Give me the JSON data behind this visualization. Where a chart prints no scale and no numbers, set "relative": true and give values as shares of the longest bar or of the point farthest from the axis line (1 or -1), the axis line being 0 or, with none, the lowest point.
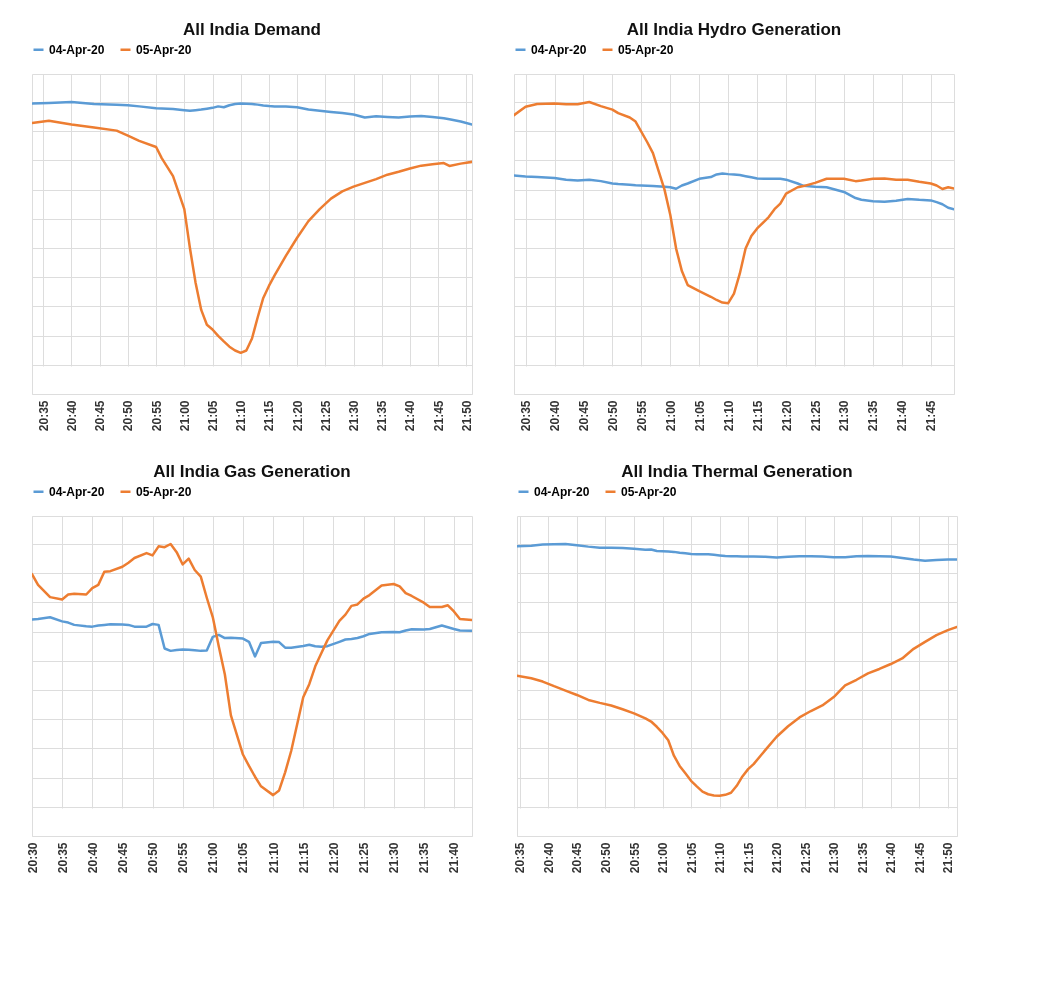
{
  "chart_data": [
    {
      "type": "line",
      "title": "All India Demand",
      "relative": true,
      "grid": true,
      "legend": "top",
      "tick_labels": "x",
      "xlim": [
        20.55,
        21.85
      ],
      "xticks": [
        {
          "value": 20.5833,
          "label": "20:35"
        },
        {
          "value": 20.6667,
          "label": "20:40"
        },
        {
          "value": 20.75,
          "label": "20:45"
        },
        {
          "value": 20.8333,
          "label": "20:50"
        },
        {
          "value": 20.9167,
          "label": "20:55"
        },
        {
          "value": 21.0,
          "label": "21:00"
        },
        {
          "value": 21.0833,
          "label": "21:05"
        },
        {
          "value": 21.1667,
          "label": "21:10"
        },
        {
          "value": 21.25,
          "label": "21:15"
        },
        {
          "value": 21.3333,
          "label": "21:20"
        },
        {
          "value": 21.4167,
          "label": "21:25"
        },
        {
          "value": 21.5,
          "label": "21:30"
        },
        {
          "value": 21.5833,
          "label": "21:35"
        },
        {
          "value": 21.6667,
          "label": "21:40"
        },
        {
          "value": 21.75,
          "label": "21:45"
        },
        {
          "value": 21.8333,
          "label": "21:50"
        }
      ],
      "x": [
        20.55,
        20.6,
        20.6667,
        20.7333,
        20.8,
        20.8333,
        20.8667,
        20.9167,
        20.9333,
        20.9667,
        21.0,
        21.0167,
        21.0333,
        21.05,
        21.0667,
        21.0833,
        21.1,
        21.1167,
        21.1333,
        21.15,
        21.1667,
        21.1833,
        21.2,
        21.2167,
        21.2333,
        21.25,
        21.2667,
        21.3,
        21.3333,
        21.3667,
        21.4,
        21.4333,
        21.4667,
        21.5,
        21.5333,
        21.5667,
        21.6,
        21.6333,
        21.6667,
        21.7,
        21.7333,
        21.7667,
        21.7833,
        21.8167,
        21.85
      ],
      "series": [
        {
          "name": "04-Apr-20",
          "color": "#5b9bd5",
          "values": [
            0.995,
            0.997,
            1.0,
            0.993,
            0.991,
            0.989,
            0.985,
            0.979,
            0.978,
            0.976,
            0.972,
            0.97,
            0.972,
            0.974,
            0.977,
            0.98,
            0.985,
            0.982,
            0.989,
            0.993,
            0.995,
            0.994,
            0.993,
            0.991,
            0.988,
            0.986,
            0.985,
            0.985,
            0.982,
            0.974,
            0.97,
            0.966,
            0.962,
            0.957,
            0.947,
            0.951,
            0.949,
            0.947,
            0.95,
            0.952,
            0.949,
            0.944,
            0.941,
            0.933,
            0.923
          ]
        },
        {
          "name": "05-Apr-20",
          "color": "#ed7d31",
          "values": [
            0.928,
            0.936,
            0.923,
            0.913,
            0.902,
            0.885,
            0.867,
            0.846,
            0.808,
            0.746,
            0.633,
            0.499,
            0.381,
            0.288,
            0.237,
            0.221,
            0.199,
            0.18,
            0.162,
            0.149,
            0.141,
            0.149,
            0.19,
            0.262,
            0.329,
            0.37,
            0.406,
            0.473,
            0.535,
            0.592,
            0.633,
            0.669,
            0.694,
            0.71,
            0.723,
            0.736,
            0.751,
            0.761,
            0.772,
            0.782,
            0.787,
            0.791,
            0.781,
            0.789,
            0.795
          ]
        }
      ]
    },
    {
      "type": "line",
      "title": "All India Hydro Generation",
      "relative": true,
      "grid": true,
      "legend": "top",
      "tick_labels": "x",
      "xlim": [
        20.55,
        21.8167
      ],
      "xticks": [
        {
          "value": 20.5833,
          "label": "20:35"
        },
        {
          "value": 20.6667,
          "label": "20:40"
        },
        {
          "value": 20.75,
          "label": "20:45"
        },
        {
          "value": 20.8333,
          "label": "20:50"
        },
        {
          "value": 20.9167,
          "label": "20:55"
        },
        {
          "value": 21.0,
          "label": "21:00"
        },
        {
          "value": 21.0833,
          "label": "21:05"
        },
        {
          "value": 21.1667,
          "label": "21:10"
        },
        {
          "value": 21.25,
          "label": "21:15"
        },
        {
          "value": 21.3333,
          "label": "21:20"
        },
        {
          "value": 21.4167,
          "label": "21:25"
        },
        {
          "value": 21.5,
          "label": "21:30"
        },
        {
          "value": 21.5833,
          "label": "21:35"
        },
        {
          "value": 21.6667,
          "label": "21:40"
        },
        {
          "value": 21.75,
          "label": "21:45"
        }
      ],
      "x": [
        20.55,
        20.5833,
        20.6167,
        20.6667,
        20.7,
        20.7333,
        20.7667,
        20.8,
        20.8333,
        20.85,
        20.8833,
        20.9,
        20.9333,
        20.95,
        20.9833,
        21.0,
        21.0167,
        21.0333,
        21.05,
        21.0833,
        21.1167,
        21.1333,
        21.15,
        21.1667,
        21.1833,
        21.2,
        21.2167,
        21.2333,
        21.25,
        21.2833,
        21.3,
        21.3167,
        21.3333,
        21.3667,
        21.3833,
        21.4167,
        21.45,
        21.5,
        21.5333,
        21.55,
        21.5833,
        21.6167,
        21.65,
        21.6833,
        21.7167,
        21.75,
        21.7667,
        21.7833,
        21.8,
        21.8167
      ],
      "series": [
        {
          "name": "04-Apr-20",
          "color": "#5b9bd5",
          "values": [
            0.748,
            0.745,
            0.743,
            0.74,
            0.734,
            0.731,
            0.734,
            0.729,
            0.721,
            0.719,
            0.717,
            0.715,
            0.713,
            0.712,
            0.71,
            0.708,
            0.703,
            0.714,
            0.721,
            0.737,
            0.743,
            0.752,
            0.755,
            0.753,
            0.752,
            0.75,
            0.746,
            0.742,
            0.738,
            0.737,
            0.737,
            0.737,
            0.734,
            0.721,
            0.713,
            0.71,
            0.708,
            0.692,
            0.671,
            0.665,
            0.66,
            0.658,
            0.662,
            0.668,
            0.665,
            0.663,
            0.657,
            0.65,
            0.638,
            0.633
          ]
        },
        {
          "name": "05-Apr-20",
          "color": "#ed7d31",
          "values": [
            0.955,
            0.984,
            0.993,
            0.995,
            0.992,
            0.992,
            1.0,
            0.986,
            0.974,
            0.962,
            0.947,
            0.933,
            0.863,
            0.825,
            0.7,
            0.613,
            0.498,
            0.421,
            0.373,
            0.352,
            0.333,
            0.322,
            0.313,
            0.311,
            0.344,
            0.412,
            0.498,
            0.541,
            0.567,
            0.606,
            0.633,
            0.652,
            0.686,
            0.708,
            0.712,
            0.723,
            0.737,
            0.737,
            0.729,
            0.731,
            0.737,
            0.738,
            0.734,
            0.734,
            0.727,
            0.721,
            0.714,
            0.702,
            0.708,
            0.704
          ]
        }
      ]
    },
    {
      "type": "line",
      "title": "All India Gas Generation",
      "relative": true,
      "grid": true,
      "legend": "top",
      "tick_labels": "x",
      "xlim": [
        20.5,
        21.7167
      ],
      "xticks": [
        {
          "value": 20.5,
          "label": "20:30"
        },
        {
          "value": 20.5833,
          "label": "20:35"
        },
        {
          "value": 20.6667,
          "label": "20:40"
        },
        {
          "value": 20.75,
          "label": "20:45"
        },
        {
          "value": 20.8333,
          "label": "20:50"
        },
        {
          "value": 20.9167,
          "label": "20:55"
        },
        {
          "value": 21.0,
          "label": "21:00"
        },
        {
          "value": 21.0833,
          "label": "21:05"
        },
        {
          "value": 21.1667,
          "label": "21:10"
        },
        {
          "value": 21.25,
          "label": "21:15"
        },
        {
          "value": 21.3333,
          "label": "21:20"
        },
        {
          "value": 21.4167,
          "label": "21:25"
        },
        {
          "value": 21.5,
          "label": "21:30"
        },
        {
          "value": 21.5833,
          "label": "21:35"
        },
        {
          "value": 21.6667,
          "label": "21:40"
        }
      ],
      "x": [
        20.5,
        20.5167,
        20.55,
        20.5833,
        20.6,
        20.6167,
        20.65,
        20.6667,
        20.6833,
        20.7,
        20.7167,
        20.75,
        20.7667,
        20.7833,
        20.8167,
        20.8333,
        20.85,
        20.8667,
        20.8833,
        20.9,
        20.9167,
        20.9333,
        20.95,
        20.9667,
        20.9833,
        21.0,
        21.0167,
        21.0333,
        21.05,
        21.0833,
        21.1,
        21.1167,
        21.1333,
        21.1667,
        21.1833,
        21.2,
        21.2167,
        21.25,
        21.2667,
        21.2833,
        21.3,
        21.3167,
        21.35,
        21.3667,
        21.3833,
        21.4,
        21.4167,
        21.4333,
        21.4667,
        21.5,
        21.5167,
        21.5333,
        21.55,
        21.5833,
        21.6,
        21.6333,
        21.65,
        21.6667,
        21.6833,
        21.7167
      ],
      "series": [
        {
          "name": "04-Apr-20",
          "color": "#5b9bd5",
          "values": [
            0.741,
            0.743,
            0.749,
            0.735,
            0.731,
            0.723,
            0.718,
            0.717,
            0.721,
            0.723,
            0.725,
            0.724,
            0.723,
            0.717,
            0.717,
            0.726,
            0.723,
            0.642,
            0.634,
            0.637,
            0.639,
            0.638,
            0.636,
            0.634,
            0.635,
            0.682,
            0.689,
            0.678,
            0.679,
            0.676,
            0.665,
            0.615,
            0.661,
            0.665,
            0.664,
            0.645,
            0.645,
            0.651,
            0.655,
            0.65,
            0.648,
            0.65,
            0.665,
            0.673,
            0.675,
            0.678,
            0.684,
            0.692,
            0.698,
            0.699,
            0.698,
            0.704,
            0.708,
            0.707,
            0.709,
            0.721,
            0.715,
            0.709,
            0.704,
            0.703
          ]
        },
        {
          "name": "05-Apr-20",
          "color": "#ed7d31",
          "values": [
            0.897,
            0.86,
            0.818,
            0.81,
            0.827,
            0.83,
            0.827,
            0.849,
            0.86,
            0.905,
            0.907,
            0.922,
            0.936,
            0.952,
            0.969,
            0.961,
            0.992,
            0.989,
            1.0,
            0.972,
            0.93,
            0.95,
            0.911,
            0.888,
            0.816,
            0.749,
            0.648,
            0.553,
            0.413,
            0.279,
            0.24,
            0.203,
            0.17,
            0.14,
            0.156,
            0.218,
            0.291,
            0.475,
            0.52,
            0.581,
            0.626,
            0.67,
            0.737,
            0.758,
            0.788,
            0.793,
            0.813,
            0.825,
            0.858,
            0.863,
            0.855,
            0.832,
            0.822,
            0.799,
            0.784,
            0.784,
            0.79,
            0.769,
            0.743,
            0.74
          ]
        }
      ]
    },
    {
      "type": "line",
      "title": "All India Thermal Generation",
      "relative": true,
      "grid": true,
      "legend": "top",
      "tick_labels": "x",
      "xlim": [
        20.575,
        21.86
      ],
      "xticks": [
        {
          "value": 20.5833,
          "label": "20:35"
        },
        {
          "value": 20.6667,
          "label": "20:40"
        },
        {
          "value": 20.75,
          "label": "20:45"
        },
        {
          "value": 20.8333,
          "label": "20:50"
        },
        {
          "value": 20.9167,
          "label": "20:55"
        },
        {
          "value": 21.0,
          "label": "21:00"
        },
        {
          "value": 21.0833,
          "label": "21:05"
        },
        {
          "value": 21.1667,
          "label": "21:10"
        },
        {
          "value": 21.25,
          "label": "21:15"
        },
        {
          "value": 21.3333,
          "label": "21:20"
        },
        {
          "value": 21.4167,
          "label": "21:25"
        },
        {
          "value": 21.5,
          "label": "21:30"
        },
        {
          "value": 21.5833,
          "label": "21:35"
        },
        {
          "value": 21.6667,
          "label": "21:40"
        },
        {
          "value": 21.75,
          "label": "21:45"
        },
        {
          "value": 21.8333,
          "label": "21:50"
        }
      ],
      "x": [
        20.575,
        20.6167,
        20.65,
        20.6833,
        20.7167,
        20.75,
        20.7833,
        20.8167,
        20.85,
        20.8833,
        20.9167,
        20.95,
        20.9667,
        20.9833,
        21.0,
        21.0167,
        21.0333,
        21.05,
        21.0667,
        21.0833,
        21.1,
        21.1167,
        21.1333,
        21.15,
        21.1667,
        21.1833,
        21.2,
        21.2167,
        21.2333,
        21.25,
        21.2667,
        21.3,
        21.3333,
        21.3667,
        21.4,
        21.4333,
        21.4667,
        21.5,
        21.5333,
        21.5667,
        21.6,
        21.6333,
        21.6667,
        21.7,
        21.7333,
        21.7667,
        21.8,
        21.8333,
        21.86
      ],
      "series": [
        {
          "name": "04-Apr-20",
          "color": "#5b9bd5",
          "values": [
            0.992,
            0.994,
            0.998,
            0.999,
            1.0,
            0.996,
            0.991,
            0.987,
            0.987,
            0.986,
            0.984,
            0.98,
            0.981,
            0.976,
            0.975,
            0.974,
            0.973,
            0.97,
            0.968,
            0.966,
            0.965,
            0.965,
            0.965,
            0.963,
            0.961,
            0.959,
            0.958,
            0.958,
            0.957,
            0.957,
            0.957,
            0.956,
            0.954,
            0.956,
            0.958,
            0.958,
            0.957,
            0.955,
            0.955,
            0.958,
            0.959,
            0.958,
            0.957,
            0.952,
            0.947,
            0.943,
            0.945,
            0.947,
            0.947
          ]
        },
        {
          "name": "05-Apr-20",
          "color": "#ed7d31",
          "values": [
            0.549,
            0.54,
            0.529,
            0.513,
            0.498,
            0.483,
            0.466,
            0.456,
            0.447,
            0.434,
            0.42,
            0.403,
            0.392,
            0.374,
            0.353,
            0.328,
            0.275,
            0.24,
            0.215,
            0.189,
            0.17,
            0.152,
            0.143,
            0.139,
            0.138,
            0.141,
            0.148,
            0.172,
            0.204,
            0.229,
            0.247,
            0.294,
            0.34,
            0.376,
            0.406,
            0.428,
            0.447,
            0.476,
            0.516,
            0.535,
            0.557,
            0.572,
            0.589,
            0.608,
            0.641,
            0.665,
            0.688,
            0.705,
            0.716
          ]
        }
      ]
    }
  ]
}
